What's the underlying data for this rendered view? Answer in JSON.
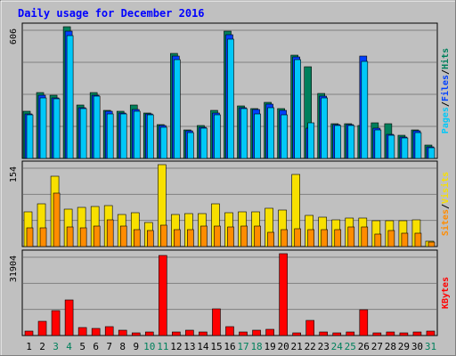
{
  "title": "Daily usage for December 2016",
  "colors": {
    "hits": "#00805c",
    "files": "#0040ff",
    "pages": "#00c8f8",
    "visits": "#f8e000",
    "sites": "#ff8c00",
    "kbytes": "#ff0000",
    "weekend": "#00805c",
    "weekday": "#000000",
    "title": "#0000ff"
  },
  "chart_data": [
    {
      "type": "bar",
      "panel": "pages-files-hits",
      "y_tick_label": "606",
      "ylim": [
        0,
        606
      ],
      "legend": [
        {
          "label": "Pages",
          "color": "#00c8f8"
        },
        {
          "label": "/",
          "color": "#000000"
        },
        {
          "label": "Files",
          "color": "#0040ff"
        },
        {
          "label": "/",
          "color": "#000000"
        },
        {
          "label": "Hits",
          "color": "#00805c"
        }
      ],
      "categories": [
        "1",
        "2",
        "3",
        "4",
        "5",
        "6",
        "7",
        "8",
        "9",
        "10",
        "11",
        "12",
        "13",
        "14",
        "15",
        "16",
        "17",
        "18",
        "19",
        "20",
        "21",
        "22",
        "23",
        "24",
        "25",
        "26",
        "27",
        "28",
        "29",
        "30",
        "31"
      ],
      "series": [
        {
          "name": "Hits",
          "values": [
            215,
            305,
            290,
            606,
            245,
            305,
            220,
            215,
            245,
            210,
            155,
            485,
            130,
            150,
            220,
            585,
            240,
            230,
            260,
            230,
            475,
            420,
            300,
            160,
            160,
            150,
            165,
            160,
            105,
            130,
            60
          ]
        },
        {
          "name": "Files",
          "values": [
            205,
            290,
            280,
            585,
            235,
            290,
            215,
            210,
            225,
            205,
            150,
            470,
            125,
            145,
            210,
            570,
            235,
            225,
            250,
            220,
            465,
            140,
            285,
            155,
            155,
            470,
            140,
            110,
            100,
            125,
            55
          ]
        },
        {
          "name": "Pages",
          "values": [
            200,
            280,
            275,
            565,
            230,
            285,
            205,
            205,
            215,
            200,
            145,
            455,
            120,
            140,
            200,
            550,
            230,
            205,
            235,
            200,
            455,
            165,
            280,
            150,
            150,
            445,
            130,
            105,
            95,
            120,
            50
          ]
        }
      ]
    },
    {
      "type": "bar",
      "panel": "visits-sites",
      "y_tick_label": "154",
      "ylim": [
        0,
        154
      ],
      "legend": [
        {
          "label": "Sites",
          "color": "#ff8c00"
        },
        {
          "label": "/",
          "color": "#000000"
        },
        {
          "label": "Visits",
          "color": "#f8e000"
        }
      ],
      "categories": [
        "1",
        "2",
        "3",
        "4",
        "5",
        "6",
        "7",
        "8",
        "9",
        "10",
        "11",
        "12",
        "13",
        "14",
        "15",
        "16",
        "17",
        "18",
        "19",
        "20",
        "21",
        "22",
        "23",
        "24",
        "25",
        "26",
        "27",
        "28",
        "29",
        "30",
        "31"
      ],
      "series": [
        {
          "name": "Visits",
          "values": [
            65,
            80,
            133,
            70,
            73,
            75,
            77,
            60,
            63,
            45,
            154,
            61,
            62,
            62,
            80,
            63,
            65,
            65,
            72,
            69,
            135,
            58,
            56,
            50,
            53,
            53,
            49,
            49,
            49,
            50,
            10
          ]
        },
        {
          "name": "Sites",
          "values": [
            35,
            35,
            100,
            37,
            35,
            38,
            50,
            38,
            32,
            30,
            40,
            32,
            32,
            38,
            38,
            37,
            38,
            38,
            26,
            32,
            33,
            31,
            31,
            31,
            37,
            36,
            23,
            30,
            25,
            25,
            8
          ]
        }
      ]
    },
    {
      "type": "bar",
      "panel": "kbytes",
      "y_tick_label": "31904",
      "ylim": [
        0,
        31904
      ],
      "legend": [
        {
          "label": "KBytes",
          "color": "#ff0000"
        }
      ],
      "categories": [
        "1",
        "2",
        "3",
        "4",
        "5",
        "6",
        "7",
        "8",
        "9",
        "10",
        "11",
        "12",
        "13",
        "14",
        "15",
        "16",
        "17",
        "18",
        "19",
        "20",
        "21",
        "22",
        "23",
        "24",
        "25",
        "26",
        "27",
        "28",
        "29",
        "30",
        "31"
      ],
      "series": [
        {
          "name": "KBytes",
          "values": [
            1800,
            5500,
            9800,
            13800,
            3000,
            2800,
            3400,
            2200,
            1200,
            1500,
            31200,
            1300,
            2200,
            1300,
            10500,
            3500,
            1500,
            2000,
            2400,
            31904,
            1200,
            5800,
            1500,
            1200,
            1400,
            10200,
            1100,
            1400,
            1200,
            1300,
            1600
          ]
        }
      ]
    }
  ],
  "weekend_days": [
    3,
    4,
    10,
    11,
    17,
    18,
    24,
    25,
    31
  ]
}
